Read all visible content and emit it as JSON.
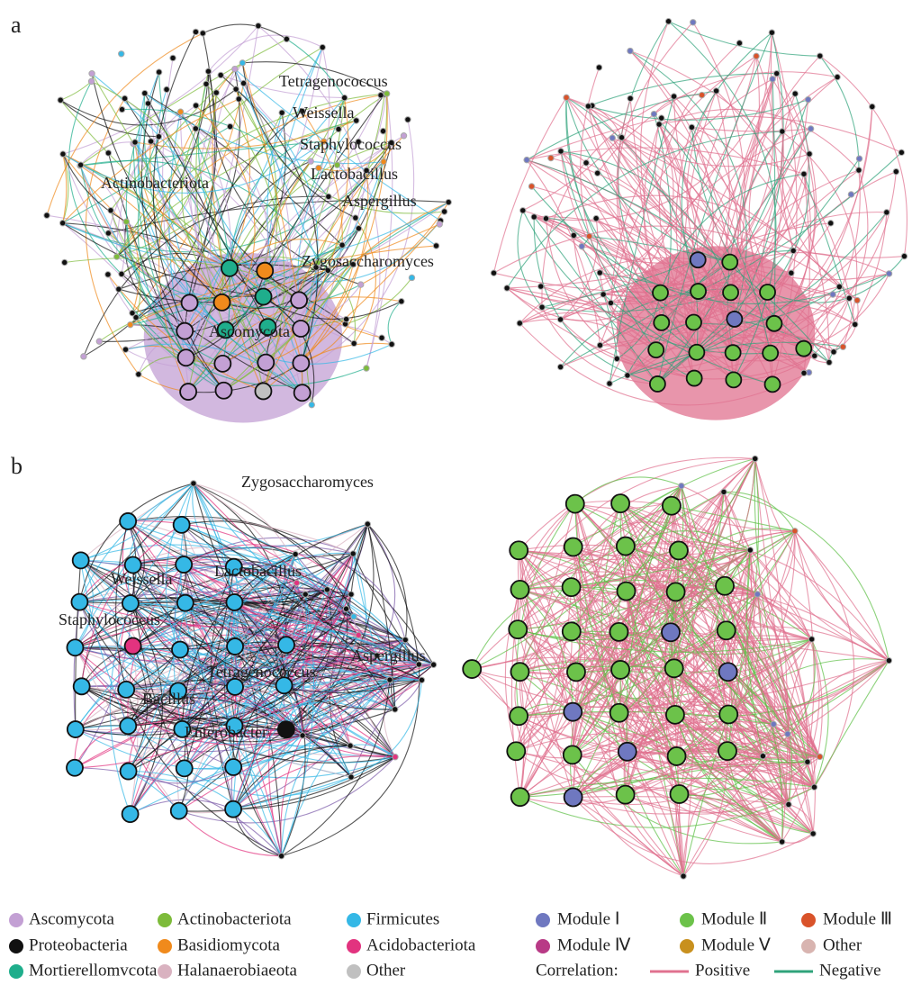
{
  "panels": [
    {
      "label": "a",
      "taxa_labels": [
        "Tetragenococcus",
        "Weissella",
        "Staphylococcus",
        "Lactobacillus",
        "Actinobacteriota",
        "Aspergillus",
        "Zygosaccharomyces",
        "Ascomycota"
      ]
    },
    {
      "label": "b",
      "taxa_labels": [
        "Zygosaccharomyces",
        "Weissella",
        "Lactobacillus",
        "Staphylococcus",
        "Aspergillus",
        "Tetragenococcus",
        "Bacillus",
        "Enterobacter"
      ]
    }
  ],
  "legend_phylum": [
    {
      "name": "Ascomycota",
      "color": "#c3a0d4"
    },
    {
      "name": "Actinobacteriota",
      "color": "#7dbb3a"
    },
    {
      "name": "Firmicutes",
      "color": "#35b8e6"
    },
    {
      "name": "Proteobacteria",
      "color": "#111111"
    },
    {
      "name": "Basidiomycota",
      "color": "#f08a1c"
    },
    {
      "name": "Acidobacteriota",
      "color": "#e2337f"
    },
    {
      "name": "Mortierellomvcota",
      "color": "#1fae8c"
    },
    {
      "name": "Halanaerobiaeota",
      "color": "#d9b2c0"
    },
    {
      "name": "Other",
      "color": "#c0c0c0"
    }
  ],
  "legend_module": [
    {
      "name": "Module Ⅰ",
      "color": "#6f78c0"
    },
    {
      "name": "Module Ⅱ",
      "color": "#6cc24a"
    },
    {
      "name": "Module Ⅲ",
      "color": "#d9532a"
    },
    {
      "name": "Module Ⅳ",
      "color": "#b83a86"
    },
    {
      "name": "Module Ⅴ",
      "color": "#c8901e"
    },
    {
      "name": "Other",
      "color": "#d8b4b0"
    }
  ],
  "correlation": {
    "title": "Correlation:",
    "positive": {
      "label": "Positive",
      "color": "#e0718f"
    },
    "negative": {
      "label": "Negative",
      "color": "#2fa37a"
    }
  }
}
